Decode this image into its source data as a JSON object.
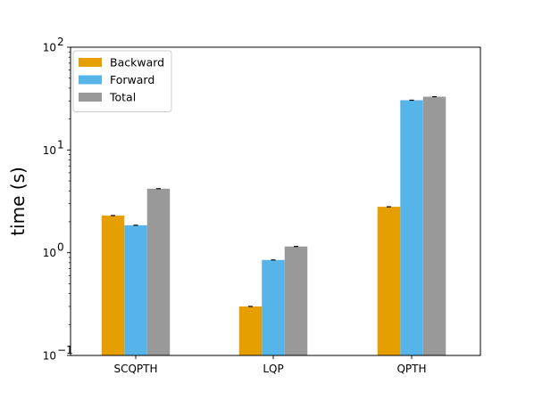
{
  "chart_data": {
    "type": "bar",
    "title": "",
    "xlabel": "",
    "ylabel": "time (s)",
    "yscale": "log",
    "ylim": [
      0.1,
      100
    ],
    "grid": false,
    "legend_position": "top-left",
    "categories": [
      "SCQPTH",
      "LQP",
      "QPTH"
    ],
    "series": [
      {
        "name": "Backward",
        "color": "#E69F00",
        "values": [
          2.3,
          0.3,
          2.8
        ]
      },
      {
        "name": "Forward",
        "color": "#56B4E9",
        "values": [
          1.85,
          0.85,
          30.5
        ]
      },
      {
        "name": "Total",
        "color": "#999999",
        "values": [
          4.2,
          1.15,
          33.0
        ]
      }
    ],
    "y_ticks": [
      {
        "base": "10",
        "exp": "−1",
        "value": 0.1
      },
      {
        "base": "10",
        "exp": "0",
        "value": 1
      },
      {
        "base": "10",
        "exp": "1",
        "value": 10
      },
      {
        "base": "10",
        "exp": "2",
        "value": 100
      }
    ]
  }
}
